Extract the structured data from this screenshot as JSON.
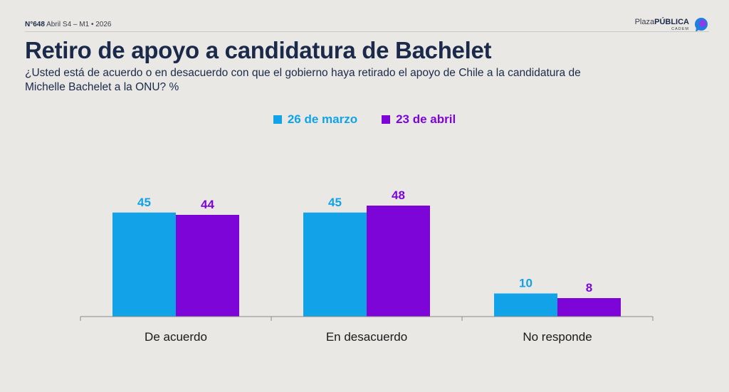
{
  "header": {
    "issue_number": "N°648",
    "issue_meta": "Abril S4 – M1 • 2026",
    "brand_prefix": "Plaza",
    "brand_bold": "PÚBLICA",
    "brand_sub": "CADEM"
  },
  "title": "Retiro de apoyo a candidatura de Bachelet",
  "subtitle": "¿Usted está de acuerdo o en desacuerdo con que el gobierno haya retirado el apoyo de Chile a la candidatura de Michelle Bachelet a la ONU? %",
  "colors": {
    "series1": "#11a2e8",
    "series2": "#7d05d8",
    "title": "#1b2a4a",
    "axis": "#8a8a8a",
    "background": "#e9e8e4"
  },
  "chart_data": {
    "type": "bar",
    "title": "Retiro de apoyo a candidatura de Bachelet",
    "xlabel": "",
    "ylabel": "",
    "ylim": [
      0,
      60
    ],
    "grid": false,
    "legend_position": "top-center",
    "categories": [
      "De acuerdo",
      "En desacuerdo",
      "No responde"
    ],
    "series": [
      {
        "name": "26 de marzo",
        "values": [
          45,
          45,
          10
        ]
      },
      {
        "name": "23 de abril",
        "values": [
          44,
          48,
          8
        ]
      }
    ]
  }
}
